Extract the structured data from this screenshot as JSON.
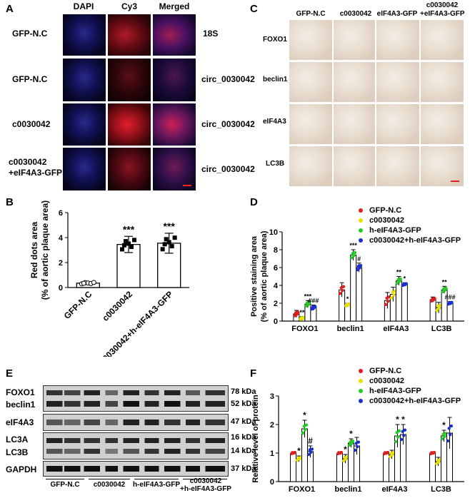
{
  "panel_labels": {
    "a": "A",
    "b": "B",
    "c": "C",
    "d": "D",
    "e": "E",
    "f": "F"
  },
  "panelA": {
    "columns": [
      "DAPI",
      "Cy3",
      "Merged"
    ],
    "row_labels": [
      "GFP-N.C",
      "GFP-N.C",
      "c0030042",
      "c0030042\n+eIF4A3-GFP"
    ],
    "probe_labels": [
      "18S",
      "circ_0030042",
      "circ_0030042",
      "circ_0030042"
    ]
  },
  "panelC": {
    "columns": [
      "GFP-N.C",
      "c0030042",
      "eIF4A3-GFP",
      "c0030042\n+eIF4A3-GFP"
    ],
    "row_labels": [
      "FOXO1",
      "beclin1",
      "eIF4A3",
      "LC3B"
    ]
  },
  "panelE": {
    "blot_labels": [
      "FOXO1",
      "beclin1",
      "eIF4A3",
      "LC3A",
      "LC3B",
      "GAPDH"
    ],
    "kda_labels": [
      "78 kDa",
      "52 kDa",
      "47 kDa",
      "16 kDa",
      "14 kDa",
      "37 kDa"
    ],
    "groups": [
      "GFP-N.C",
      "c0030042",
      "h-eIF4A3-GFP",
      "c0030042\n+h-eIF4A3-GFP"
    ]
  },
  "colors": {
    "gfp_nc": "#e01e1e",
    "c0030042": "#e8e000",
    "h_eif4a3": "#22cc22",
    "combo": "#1a2fd0"
  },
  "chart_data": [
    {
      "id": "B",
      "type": "bar",
      "categories": [
        "GFP-N.C",
        "c0030042",
        "c0030042+h-eIF4A3-GFP"
      ],
      "values": [
        0.35,
        3.45,
        3.55
      ],
      "errors": [
        0.1,
        0.65,
        0.8
      ],
      "significance": [
        "",
        "***",
        "***"
      ],
      "ylabel": "Red dots area\n(% of aortic plaque area)",
      "ylim": [
        0,
        6
      ],
      "yticks": [
        0,
        2,
        4,
        6
      ]
    },
    {
      "id": "D",
      "type": "bar",
      "categories": [
        "FOXO1",
        "beclin1",
        "eIF4A3",
        "LC3B"
      ],
      "series": [
        {
          "name": "GFP-N.C",
          "values": [
            0.8,
            3.5,
            2.3,
            2.4
          ],
          "errors": [
            0.4,
            0.8,
            0.9,
            0.3
          ],
          "sig": [
            "",
            "",
            "",
            ""
          ]
        },
        {
          "name": "c0030042",
          "values": [
            0.3,
            1.8,
            3.0,
            1.5
          ],
          "errors": [
            0.2,
            0.2,
            0.8,
            0.6
          ],
          "sig": [
            "**",
            "*",
            "",
            ""
          ]
        },
        {
          "name": "h-eIF4A3-GFP",
          "values": [
            1.9,
            7.4,
            4.5,
            3.5
          ],
          "errors": [
            0.4,
            0.6,
            0.5,
            0.4
          ],
          "sig": [
            "***",
            "***",
            "**",
            "**"
          ]
        },
        {
          "name": "c0030042+h-eIF4A3-GFP",
          "values": [
            1.5,
            6.0,
            4.1,
            2.0
          ],
          "errors": [
            0.3,
            0.5,
            0.2,
            0.2
          ],
          "sig": [
            "###",
            "#",
            "*",
            "###"
          ]
        }
      ],
      "ylabel": "Positive staining area\n(% of aortic plaque area)",
      "ylim": [
        0,
        10
      ],
      "yticks": [
        0,
        2,
        4,
        6,
        8,
        10
      ],
      "legend_placement": "top-right"
    },
    {
      "id": "F",
      "type": "bar",
      "categories": [
        "FOXO1",
        "beclin1",
        "eIF4A3",
        "LC3B"
      ],
      "series": [
        {
          "name": "GFP-N.C",
          "values": [
            1.0,
            1.0,
            1.0,
            1.0
          ],
          "errors": [
            0.05,
            0.05,
            0.05,
            0.05
          ],
          "sig": [
            "",
            "",
            "",
            ""
          ]
        },
        {
          "name": "c0030042",
          "values": [
            0.8,
            0.8,
            0.95,
            0.7
          ],
          "errors": [
            0.1,
            0.15,
            0.15,
            0.15
          ],
          "sig": [
            "*",
            "*",
            "",
            ""
          ]
        },
        {
          "name": "h-eIF4A3-GFP",
          "values": [
            1.85,
            1.35,
            1.6,
            1.6
          ],
          "errors": [
            0.3,
            0.15,
            0.4,
            0.2
          ],
          "sig": [
            "*",
            "*",
            "*",
            "*"
          ]
        },
        {
          "name": "c0030042+h-eIF4A3-GFP",
          "values": [
            1.05,
            1.25,
            1.65,
            1.7
          ],
          "errors": [
            0.2,
            0.3,
            0.35,
            0.55
          ],
          "sig": [
            "#",
            "",
            "*",
            ""
          ]
        }
      ],
      "ylabel": "Relative level of protein",
      "ylim": [
        0,
        3
      ],
      "yticks": [
        0,
        1,
        2,
        3
      ],
      "legend_placement": "top-right"
    }
  ]
}
